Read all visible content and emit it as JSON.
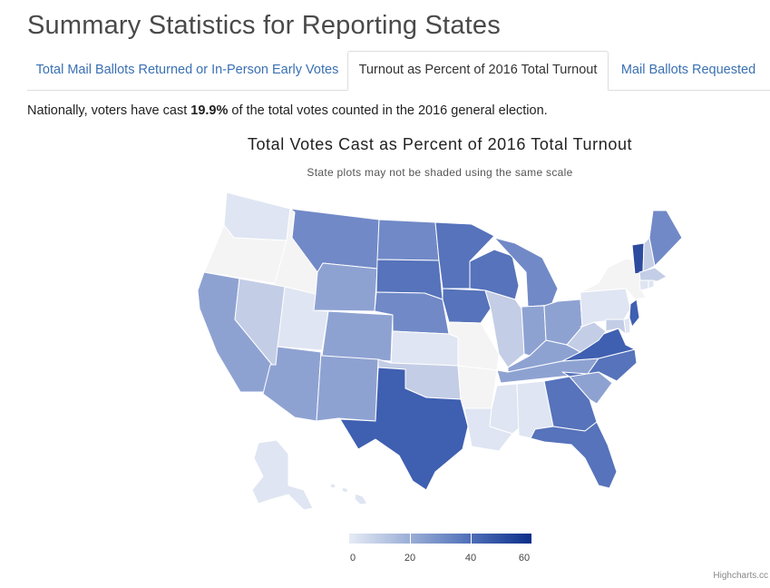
{
  "page": {
    "title": "Summary Statistics for Reporting States",
    "summary_prefix": "Nationally, voters have cast ",
    "summary_value": "19.9%",
    "summary_suffix": " of the total votes counted in the 2016 general election."
  },
  "tabs": [
    {
      "label": "Total Mail Ballots Returned or In-Person Early Votes",
      "active": false
    },
    {
      "label": "Turnout as Percent of 2016 Total Turnout",
      "active": true
    },
    {
      "label": "Mail Ballots Requested",
      "active": false
    }
  ],
  "map": {
    "title": "Total Votes Cast as Percent of 2016 Total Turnout",
    "subtitle": "State plots may not be shaded using the same scale",
    "legend": {
      "labels": [
        "0",
        "20",
        "40",
        "60"
      ],
      "min": 0,
      "max": 60,
      "colors": [
        "#e6ebf5",
        "#9aaed6",
        "#4f6fb8",
        "#0c2f8a"
      ]
    },
    "credits": "Highcharts.cc",
    "colors": {
      "none": "#f4f4f4",
      "very_light": "#dfe5f2",
      "light": "#c3cde6",
      "medium_light": "#a8b7dc",
      "medium": "#8ea2d2",
      "medium_dark": "#7189c7",
      "dark": "#5673bb",
      "darker": "#3f5fb1",
      "darkest": "#2d4b9e"
    }
  }
}
